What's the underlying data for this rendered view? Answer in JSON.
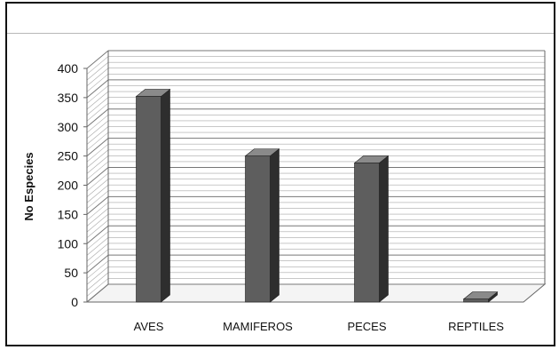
{
  "chart_data": {
    "type": "bar",
    "title": "",
    "xlabel": "",
    "ylabel": "No Especies",
    "categories": [
      "AVES",
      "MAMIFEROS",
      "PECES",
      "REPTILES"
    ],
    "values": [
      352,
      250,
      238,
      5
    ],
    "ylim": [
      0,
      400
    ],
    "yticks": [
      0,
      50,
      100,
      150,
      200,
      250,
      300,
      350,
      400
    ],
    "grid": true,
    "legend": "none",
    "style": "3d-column",
    "colors": {
      "bar_front": "#5e5e5e",
      "bar_side": "#2e2e2e",
      "bar_top": "#8a8a8a",
      "grid": "#8c8c8c",
      "axis": "#666666"
    }
  }
}
